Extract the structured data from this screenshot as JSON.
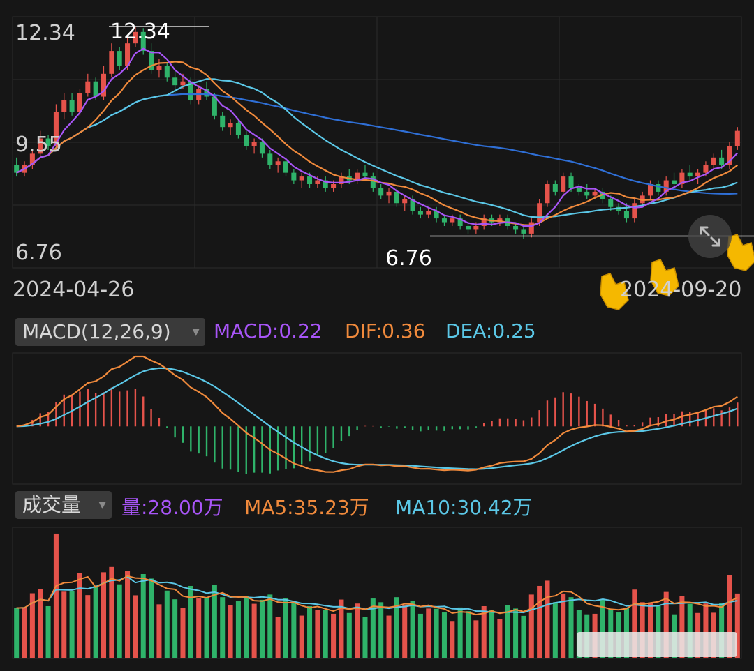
{
  "price_panel": {
    "y_labels": [
      "12.34",
      "9.55",
      "6.76"
    ],
    "high_marker": "12.34",
    "low_marker": "6.76",
    "dates": [
      "2024-04-26",
      "2024-09-20"
    ]
  },
  "macd_header": {
    "selector": "MACD(12,26,9)",
    "macd": "MACD:0.22",
    "dif": "DIF:0.36",
    "dea": "DEA:0.25"
  },
  "volume_header": {
    "selector": "成交量",
    "vol": "量:28.00万",
    "ma5": "MA5:35.23万",
    "ma10": "MA10:30.42万"
  },
  "colors": {
    "background": "#161616",
    "up": "#e5534b",
    "down": "#2fb36a",
    "ma5": "#a855f7",
    "ma10": "#f08a3c",
    "ma20": "#5bc7e6",
    "ma60": "#2f6fd6",
    "dif": "#f08a3c",
    "dea": "#5bc7e6",
    "grid": "#2c2c2c",
    "hand_icon": "#f5b800"
  },
  "chart_data": [
    {
      "type": "candlestick",
      "x_labels": [
        "2024-04-26",
        "2024-09-20"
      ],
      "ylim": [
        6.0,
        12.6
      ],
      "y_ticks": [
        12.34,
        9.55,
        6.76
      ],
      "grid": true,
      "annotations": [
        {
          "text": "12.34",
          "value": 12.34,
          "index": 24
        },
        {
          "text": "6.76",
          "value": 6.76,
          "index": 131
        }
      ],
      "series_ohlc": [
        [
          8.7,
          8.9,
          8.4,
          8.5
        ],
        [
          8.5,
          8.8,
          8.4,
          8.7
        ],
        [
          8.7,
          9.1,
          8.6,
          9.0
        ],
        [
          9.0,
          9.6,
          8.9,
          9.4
        ],
        [
          9.4,
          9.5,
          9.1,
          9.2
        ],
        [
          9.2,
          10.3,
          9.1,
          10.1
        ],
        [
          10.1,
          10.6,
          9.9,
          10.4
        ],
        [
          10.4,
          10.6,
          10.0,
          10.1
        ],
        [
          10.1,
          10.7,
          10.0,
          10.6
        ],
        [
          10.6,
          11.1,
          10.5,
          10.9
        ],
        [
          10.9,
          11.0,
          10.4,
          10.5
        ],
        [
          10.5,
          11.3,
          10.4,
          11.1
        ],
        [
          11.1,
          11.9,
          11.0,
          11.7
        ],
        [
          11.7,
          11.8,
          11.2,
          11.3
        ],
        [
          11.3,
          12.1,
          11.2,
          11.9
        ],
        [
          11.9,
          12.34,
          11.8,
          12.2
        ],
        [
          12.2,
          12.3,
          11.6,
          11.7
        ],
        [
          11.7,
          11.9,
          11.1,
          11.2
        ],
        [
          11.2,
          11.5,
          11.0,
          11.3
        ],
        [
          11.3,
          11.4,
          10.9,
          11.0
        ],
        [
          11.0,
          11.2,
          10.6,
          10.8
        ],
        [
          10.8,
          11.1,
          10.7,
          10.9
        ],
        [
          10.9,
          11.0,
          10.3,
          10.4
        ],
        [
          10.4,
          10.8,
          10.3,
          10.7
        ],
        [
          10.7,
          10.9,
          10.4,
          10.5
        ],
        [
          10.5,
          10.6,
          9.9,
          10.0
        ],
        [
          10.0,
          10.1,
          9.6,
          9.7
        ],
        [
          9.7,
          9.9,
          9.5,
          9.8
        ],
        [
          9.8,
          9.9,
          9.4,
          9.5
        ],
        [
          9.5,
          9.6,
          9.1,
          9.2
        ],
        [
          9.2,
          9.4,
          9.0,
          9.3
        ],
        [
          9.3,
          9.4,
          8.9,
          9.0
        ],
        [
          9.0,
          9.1,
          8.6,
          8.7
        ],
        [
          8.7,
          8.9,
          8.5,
          8.8
        ],
        [
          8.8,
          8.9,
          8.4,
          8.5
        ],
        [
          8.5,
          8.6,
          8.2,
          8.3
        ],
        [
          8.3,
          8.5,
          8.1,
          8.4
        ],
        [
          8.4,
          8.5,
          8.1,
          8.2
        ],
        [
          8.2,
          8.4,
          8.1,
          8.3
        ],
        [
          8.3,
          8.4,
          8.0,
          8.1
        ],
        [
          8.1,
          8.3,
          8.0,
          8.2
        ],
        [
          8.2,
          8.5,
          8.1,
          8.4
        ],
        [
          8.4,
          8.6,
          8.2,
          8.3
        ],
        [
          8.3,
          8.6,
          8.2,
          8.5
        ],
        [
          8.5,
          8.7,
          8.3,
          8.4
        ],
        [
          8.4,
          8.5,
          8.0,
          8.1
        ],
        [
          8.1,
          8.2,
          7.8,
          7.9
        ],
        [
          7.9,
          8.1,
          7.7,
          8.0
        ],
        [
          8.0,
          8.1,
          7.6,
          7.7
        ],
        [
          7.7,
          7.9,
          7.5,
          7.8
        ],
        [
          7.8,
          7.9,
          7.4,
          7.5
        ],
        [
          7.5,
          7.6,
          7.3,
          7.4
        ],
        [
          7.4,
          7.6,
          7.3,
          7.5
        ],
        [
          7.5,
          7.6,
          7.2,
          7.3
        ],
        [
          7.3,
          7.4,
          7.1,
          7.2
        ],
        [
          7.2,
          7.4,
          7.1,
          7.3
        ],
        [
          7.3,
          7.4,
          7.0,
          7.1
        ],
        [
          7.1,
          7.2,
          6.9,
          7.0
        ],
        [
          7.0,
          7.2,
          6.9,
          7.1
        ],
        [
          7.1,
          7.4,
          7.0,
          7.3
        ],
        [
          7.3,
          7.4,
          7.1,
          7.2
        ],
        [
          7.2,
          7.4,
          7.1,
          7.3
        ],
        [
          7.3,
          7.4,
          7.0,
          7.1
        ],
        [
          7.1,
          7.2,
          6.9,
          7.0
        ],
        [
          7.0,
          7.1,
          6.76,
          6.9
        ],
        [
          6.9,
          7.3,
          6.8,
          7.2
        ],
        [
          7.2,
          7.8,
          7.1,
          7.7
        ],
        [
          7.7,
          8.3,
          7.6,
          8.2
        ],
        [
          8.2,
          8.3,
          7.9,
          8.0
        ],
        [
          8.0,
          8.5,
          7.9,
          8.4
        ],
        [
          8.4,
          8.5,
          8.0,
          8.1
        ],
        [
          8.1,
          8.2,
          7.9,
          8.0
        ],
        [
          8.0,
          8.2,
          7.8,
          7.9
        ],
        [
          7.9,
          8.1,
          7.8,
          8.0
        ],
        [
          8.0,
          8.1,
          7.7,
          7.8
        ],
        [
          7.8,
          7.9,
          7.5,
          7.6
        ],
        [
          7.6,
          7.7,
          7.4,
          7.5
        ],
        [
          7.5,
          7.7,
          7.2,
          7.3
        ],
        [
          7.3,
          7.8,
          7.2,
          7.7
        ],
        [
          7.7,
          8.0,
          7.6,
          7.9
        ],
        [
          7.9,
          8.3,
          7.8,
          8.2
        ],
        [
          8.2,
          8.3,
          7.9,
          8.0
        ],
        [
          8.0,
          8.4,
          7.9,
          8.3
        ],
        [
          8.3,
          8.5,
          8.1,
          8.2
        ],
        [
          8.2,
          8.6,
          8.1,
          8.5
        ],
        [
          8.5,
          8.7,
          8.3,
          8.4
        ],
        [
          8.4,
          8.6,
          8.2,
          8.5
        ],
        [
          8.5,
          8.8,
          8.4,
          8.7
        ],
        [
          8.7,
          9.0,
          8.6,
          8.9
        ],
        [
          8.9,
          9.1,
          8.6,
          8.7
        ],
        [
          8.7,
          9.3,
          8.6,
          9.2
        ],
        [
          9.2,
          9.7,
          9.1,
          9.6
        ]
      ]
    },
    {
      "type": "bar+line",
      "title": "MACD(12,26,9)",
      "series": [
        {
          "name": "MACD",
          "last": 0.22
        },
        {
          "name": "DIF",
          "last": 0.36
        },
        {
          "name": "DEA",
          "last": 0.25
        }
      ]
    },
    {
      "type": "bar+line",
      "title": "成交量",
      "series": [
        {
          "name": "量",
          "last": "28.00万"
        },
        {
          "name": "MA5",
          "last": "35.23万"
        },
        {
          "name": "MA10",
          "last": "30.42万"
        }
      ]
    }
  ]
}
